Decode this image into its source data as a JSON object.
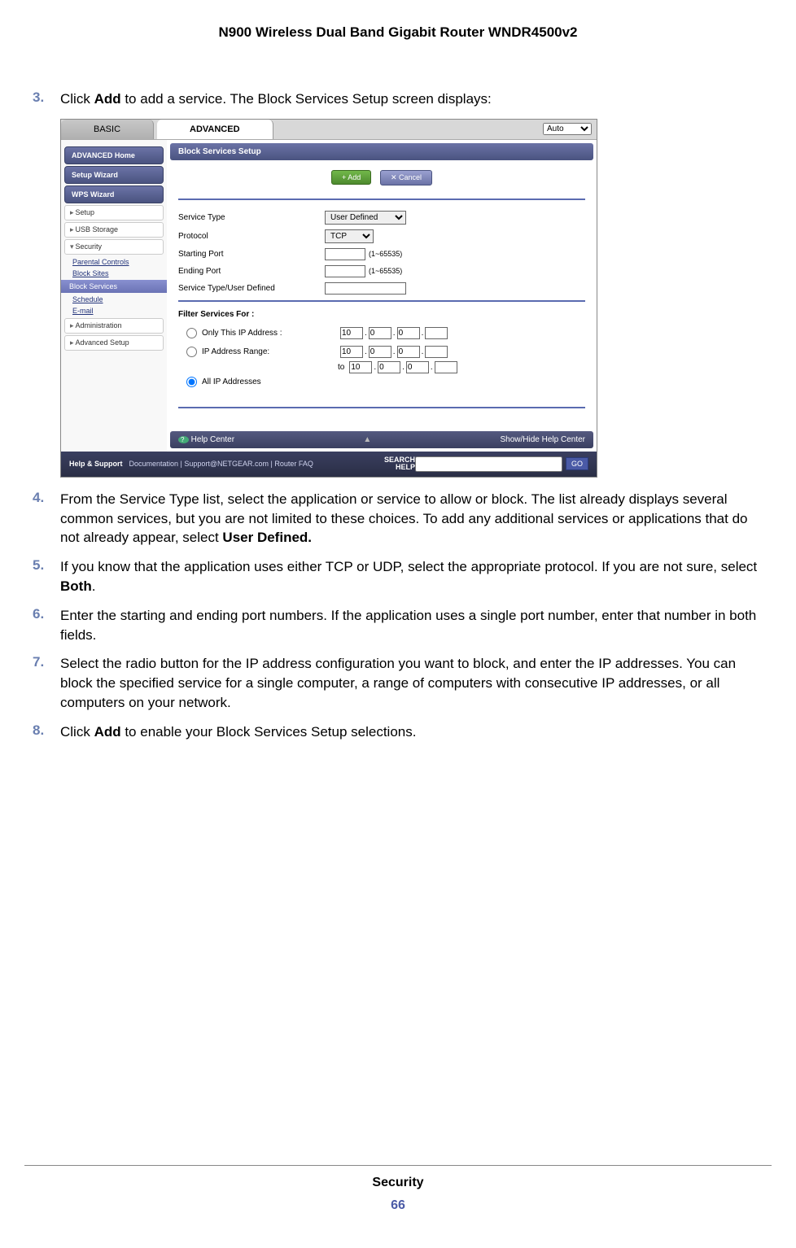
{
  "doc": {
    "title": "N900 Wireless Dual Band Gigabit Router WNDR4500v2",
    "footer_section": "Security",
    "page_number": "66"
  },
  "steps": [
    {
      "num": "3.",
      "html": "Click <b>Add</b> to add a service. The Block Services Setup screen displays:"
    },
    {
      "num": "4.",
      "html": "From the Service Type list, select the application or service to allow or block. The list already displays several common services, but you are not limited to these choices. To add any additional services or applications that do not already appear, select <b>User Defined.</b>"
    },
    {
      "num": "5.",
      "html": "If you know that the application uses either TCP or UDP, select the appropriate protocol. If you are not sure, select <b>Both</b>."
    },
    {
      "num": "6.",
      "html": "Enter the starting and ending port numbers. If the application uses a single port number, enter that number in both fields."
    },
    {
      "num": "7.",
      "html": "Select the radio button for the IP address configuration you want to block, and enter the IP addresses. You can block the specified service for a single computer, a range of computers with consecutive IP addresses, or all computers on your network."
    },
    {
      "num": "8.",
      "html": "Click <b>Add</b> to enable your Block Services Setup selections."
    }
  ],
  "router": {
    "tabs": {
      "basic": "BASIC",
      "advanced": "ADVANCED"
    },
    "language": "Auto",
    "sidebar": {
      "buttons": [
        "ADVANCED Home",
        "Setup Wizard",
        "WPS Wizard"
      ],
      "items": [
        "Setup",
        "USB Storage",
        "Security",
        "Administration",
        "Advanced Setup"
      ],
      "security_subs": [
        "Parental Controls",
        "Block Sites",
        "Block Services",
        "Schedule",
        "E-mail"
      ]
    },
    "content": {
      "title": "Block Services Setup",
      "add": "+ Add",
      "cancel": "✕ Cancel",
      "service_type_label": "Service Type",
      "service_type_value": "User Defined",
      "protocol_label": "Protocol",
      "protocol_value": "TCP",
      "starting_port_label": "Starting Port",
      "ending_port_label": "Ending Port",
      "port_hint": "(1~65535)",
      "user_defined_label": "Service Type/User Defined",
      "filter_label": "Filter Services For :",
      "only_ip_label": "Only This IP Address :",
      "ip_range_label": "IP Address Range:",
      "all_ip_label": "All IP Addresses",
      "ip": {
        "a": "10",
        "b": "0",
        "c": "0",
        "d": ""
      },
      "to_label": "to",
      "help_center": "Help Center",
      "show_hide": "Show/Hide Help Center"
    },
    "bottom": {
      "help_support": "Help & Support",
      "links": "Documentation | Support@NETGEAR.com | Router FAQ",
      "search_label_1": "SEARCH",
      "search_label_2": "HELP",
      "go": "GO"
    }
  }
}
